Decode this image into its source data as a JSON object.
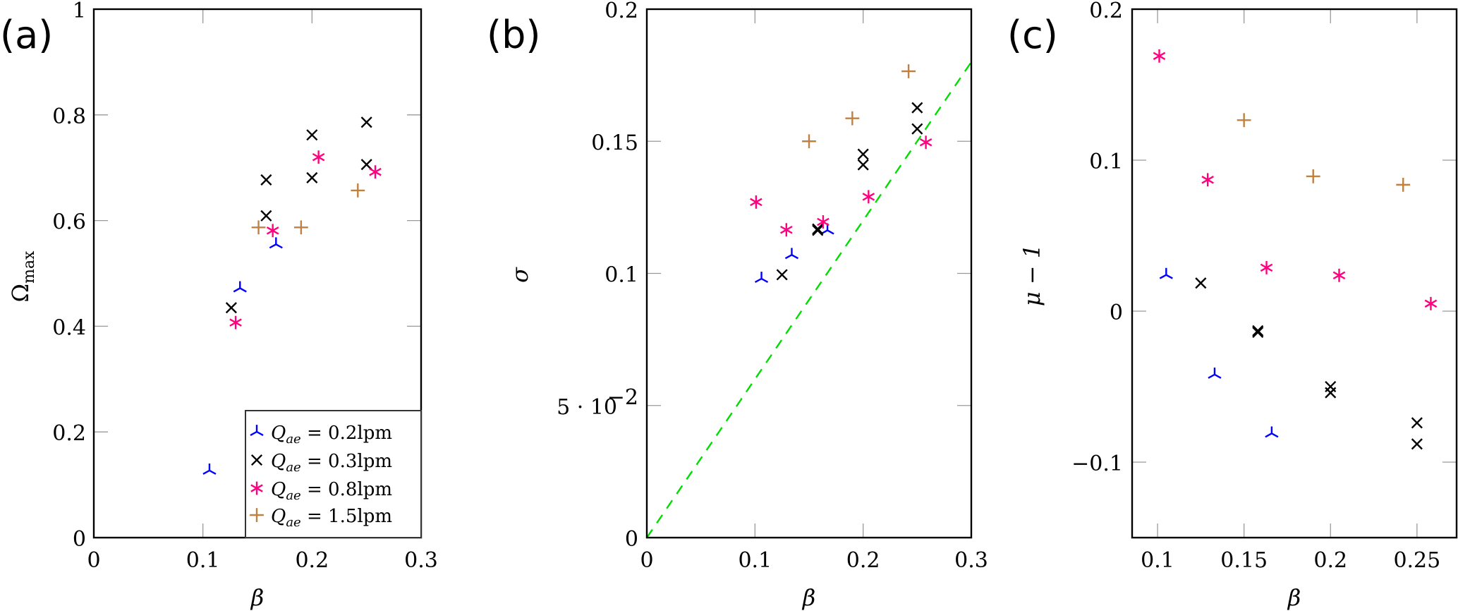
{
  "colors": {
    "q02": "#0000ff",
    "q03": "#000000",
    "q08": "#ff0080",
    "q15": "#c08040",
    "guide_line": "#00dd00",
    "tick_gray": "#999999"
  },
  "legend": {
    "placement": "bottom-right of panel (a)",
    "entries": [
      {
        "key": "q02",
        "marker": "tri-down",
        "label": "Q_ae = 0.2lpm",
        "sub": "ae",
        "value": " = 0.2lpm"
      },
      {
        "key": "q03",
        "marker": "x",
        "label": "Q_ae = 0.3lpm",
        "sub": "ae",
        "value": " = 0.3lpm"
      },
      {
        "key": "q08",
        "marker": "asterisk",
        "label": "Q_ae = 0.8lpm",
        "sub": "ae",
        "value": " = 0.8lpm"
      },
      {
        "key": "q15",
        "marker": "plus",
        "label": "Q_ae = 1.5lpm",
        "sub": "ae",
        "value": " = 1.5lpm"
      }
    ]
  },
  "chart_data": [
    {
      "panel": "(a)",
      "type": "scatter",
      "xlabel": "β",
      "ylabel": "Ω",
      "ylabel_sub": "max",
      "xlim": [
        0,
        0.3
      ],
      "ylim": [
        0,
        1
      ],
      "xticks": [
        0,
        0.1,
        0.2,
        0.3
      ],
      "xtick_labels": [
        "0",
        "0.1",
        "0.2",
        "0.3"
      ],
      "yticks": [
        0,
        0.2,
        0.4,
        0.6,
        0.8,
        1
      ],
      "ytick_labels": [
        "0",
        "0.2",
        "0.4",
        "0.6",
        "0.8",
        "1"
      ],
      "series": [
        {
          "name": "Q_ae = 0.2lpm",
          "key": "q02",
          "x": [
            0.106,
            0.134,
            0.167
          ],
          "y": [
            0.127,
            0.472,
            0.555
          ]
        },
        {
          "name": "Q_ae = 0.3lpm",
          "key": "q03",
          "x": [
            0.126,
            0.158,
            0.158,
            0.2,
            0.2,
            0.25,
            0.25
          ],
          "y": [
            0.435,
            0.609,
            0.677,
            0.681,
            0.762,
            0.706,
            0.786
          ]
        },
        {
          "name": "Q_ae = 0.8lpm",
          "key": "q08",
          "x": [
            0.13,
            0.164,
            0.206,
            0.258
          ],
          "y": [
            0.407,
            0.581,
            0.72,
            0.692
          ]
        },
        {
          "name": "Q_ae = 1.5lpm",
          "key": "q15",
          "x": [
            0.151,
            0.19,
            0.242
          ],
          "y": [
            0.587,
            0.587,
            0.657
          ]
        }
      ]
    },
    {
      "panel": "(b)",
      "type": "scatter",
      "xlabel": "β",
      "ylabel": "σ",
      "xlim": [
        0,
        0.3
      ],
      "ylim": [
        0,
        0.2
      ],
      "xticks": [
        0,
        0.1,
        0.2,
        0.3
      ],
      "xtick_labels": [
        "0",
        "0.1",
        "0.2",
        "0.3"
      ],
      "yticks": [
        0,
        0.05,
        0.1,
        0.15,
        0.2
      ],
      "ytick_labels": [
        "0",
        "5 · 10",
        "0.1",
        "0.15",
        "0.2"
      ],
      "ytick_exponent": "−2",
      "reference_line": {
        "style": "dashed",
        "x": [
          0,
          0.3
        ],
        "y": [
          0,
          0.18
        ]
      },
      "series": [
        {
          "name": "Q_ae = 0.2lpm",
          "key": "q02",
          "x": [
            0.106,
            0.134,
            0.167
          ],
          "y": [
            0.098,
            0.107,
            0.1163
          ]
        },
        {
          "name": "Q_ae = 0.3lpm",
          "key": "q03",
          "x": [
            0.125,
            0.158,
            0.158,
            0.2,
            0.2,
            0.25,
            0.25
          ],
          "y": [
            0.0995,
            0.1163,
            0.1168,
            0.1411,
            0.1451,
            0.1547,
            0.1627
          ]
        },
        {
          "name": "Q_ae = 0.8lpm",
          "key": "q08",
          "x": [
            0.101,
            0.129,
            0.163,
            0.205,
            0.258
          ],
          "y": [
            0.127,
            0.1165,
            0.1195,
            0.129,
            0.1496
          ]
        },
        {
          "name": "Q_ae = 1.5lpm",
          "key": "q15",
          "x": [
            0.15,
            0.19,
            0.242
          ],
          "y": [
            0.15,
            0.1587,
            0.1765
          ]
        }
      ]
    },
    {
      "panel": "(c)",
      "type": "scatter",
      "xlabel": "β",
      "ylabel": "μ − 1",
      "xlim": [
        0.0853,
        0.2729
      ],
      "ylim": [
        -0.15,
        0.2
      ],
      "xticks": [
        0.1,
        0.15,
        0.2,
        0.25
      ],
      "xtick_labels": [
        "0.1",
        "0.15",
        "0.2",
        "0.25"
      ],
      "yticks": [
        -0.1,
        0,
        0.1,
        0.2
      ],
      "ytick_labels": [
        "−0.1",
        "0",
        "0.1",
        "0.2"
      ],
      "series": [
        {
          "name": "Q_ae = 0.2lpm",
          "key": "q02",
          "x": [
            0.105,
            0.133,
            0.166
          ],
          "y": [
            0.024,
            -0.042,
            -0.081
          ]
        },
        {
          "name": "Q_ae = 0.3lpm",
          "key": "q03",
          "x": [
            0.125,
            0.158,
            0.158,
            0.2,
            0.2,
            0.25,
            0.25
          ],
          "y": [
            0.0186,
            -0.013,
            -0.014,
            -0.05,
            -0.054,
            -0.074,
            -0.088
          ]
        },
        {
          "name": "Q_ae = 0.8lpm",
          "key": "q08",
          "x": [
            0.101,
            0.129,
            0.163,
            0.205,
            0.258
          ],
          "y": [
            0.169,
            0.087,
            0.0288,
            0.0237,
            0.005
          ]
        },
        {
          "name": "Q_ae = 1.5lpm",
          "key": "q15",
          "x": [
            0.15,
            0.19,
            0.242
          ],
          "y": [
            0.1265,
            0.0893,
            0.0837
          ]
        }
      ]
    }
  ]
}
